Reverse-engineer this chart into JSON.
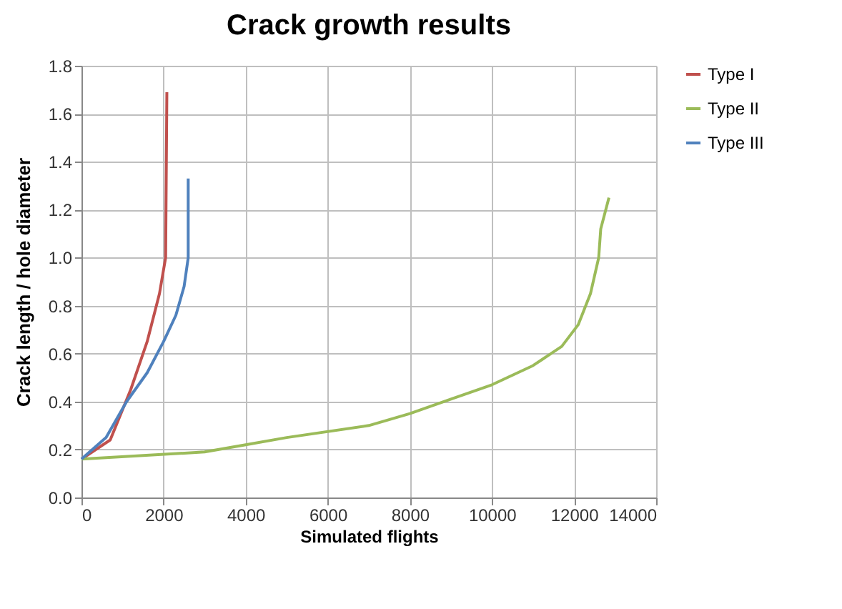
{
  "chart_data": {
    "type": "line",
    "title": "Crack growth results",
    "xlabel": "Simulated flights",
    "ylabel": "Crack length / hole diameter",
    "xlim": [
      0,
      14000
    ],
    "xticks": [
      0,
      2000,
      4000,
      6000,
      8000,
      10000,
      12000,
      14000
    ],
    "ylim": [
      0,
      1.8
    ],
    "yticks": [
      {
        "value": 0,
        "label": "0.0"
      },
      0.2,
      0.4,
      0.6,
      0.8,
      {
        "value": 1,
        "label": "1.0"
      },
      1.2,
      1.4,
      1.6,
      1.8
    ],
    "grid": true,
    "legend": "right",
    "marker": "none",
    "line_style": "solid",
    "series": [
      {
        "name": "Type I",
        "color": "#c0504d",
        "x": [
          0,
          700,
          1200,
          1600,
          1900,
          2050,
          2080
        ],
        "values": [
          0.16,
          0.24,
          0.45,
          0.65,
          0.85,
          1.0,
          1.69
        ]
      },
      {
        "name": "Type II",
        "color": "#9bbb59",
        "x": [
          0,
          3000,
          4000,
          5000,
          7000,
          8000,
          9000,
          10000,
          11000,
          11700,
          12100,
          12400,
          12600,
          12650,
          12850
        ],
        "values": [
          0.16,
          0.19,
          0.22,
          0.25,
          0.3,
          0.35,
          0.41,
          0.47,
          0.55,
          0.63,
          0.72,
          0.85,
          1.0,
          1.12,
          1.25
        ]
      },
      {
        "name": "Type III",
        "color": "#4f81bd",
        "x": [
          0,
          600,
          1100,
          1600,
          2000,
          2300,
          2500,
          2600,
          2600
        ],
        "values": [
          0.16,
          0.25,
          0.4,
          0.52,
          0.65,
          0.76,
          0.88,
          1.0,
          1.33
        ]
      }
    ]
  }
}
